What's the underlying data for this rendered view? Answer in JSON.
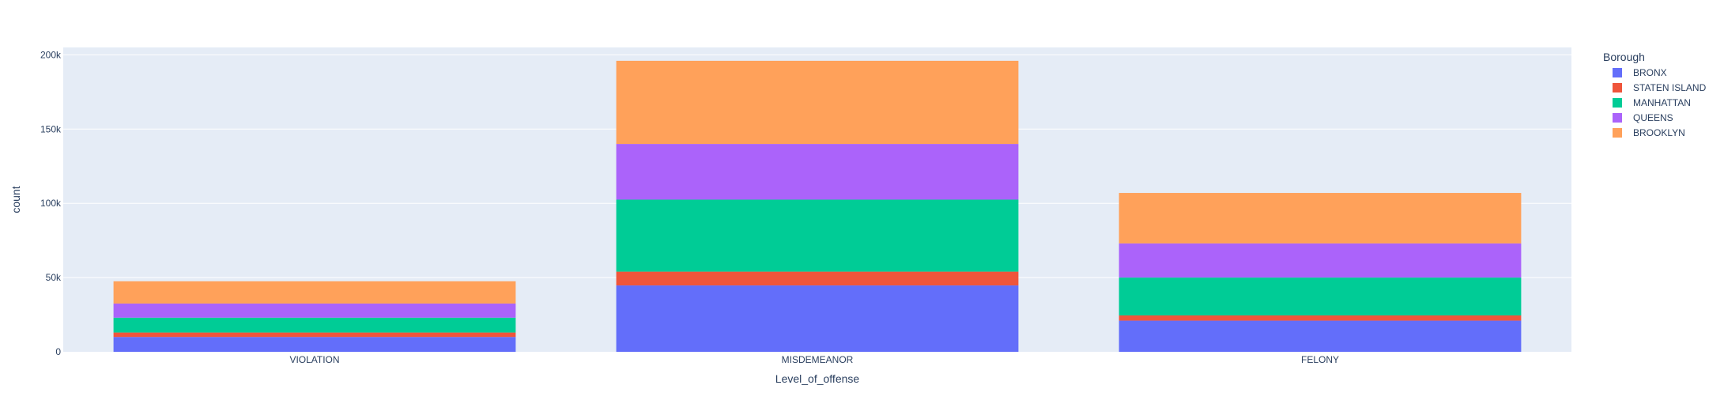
{
  "chart_data": {
    "type": "bar",
    "barmode": "stack",
    "title": "",
    "xlabel": "Level_of_offense",
    "ylabel": "count",
    "categories": [
      "VIOLATION",
      "MISDEMEANOR",
      "FELONY"
    ],
    "ylim": [
      0,
      205000
    ],
    "yticks": [
      0,
      50000,
      100000,
      150000,
      200000
    ],
    "ytick_labels": [
      "0",
      "50k",
      "100k",
      "150k",
      "200k"
    ],
    "grid": true,
    "legend_title": "Borough",
    "legend_position": "right",
    "series": [
      {
        "name": "BRONX",
        "color": "#636efa",
        "values": [
          10000,
          44700,
          21000
        ]
      },
      {
        "name": "STATEN ISLAND",
        "color": "#ef553b",
        "values": [
          3000,
          9300,
          3500
        ]
      },
      {
        "name": "MANHATTAN",
        "color": "#00cc96",
        "values": [
          10000,
          48500,
          25500
        ]
      },
      {
        "name": "QUEENS",
        "color": "#ab63fa",
        "values": [
          9500,
          37500,
          23000
        ]
      },
      {
        "name": "BROOKLYN",
        "color": "#ffa15a",
        "values": [
          15000,
          56000,
          34000
        ]
      }
    ],
    "plot_bg": "#e5ecf6",
    "text_color": "#2a3f5f"
  }
}
